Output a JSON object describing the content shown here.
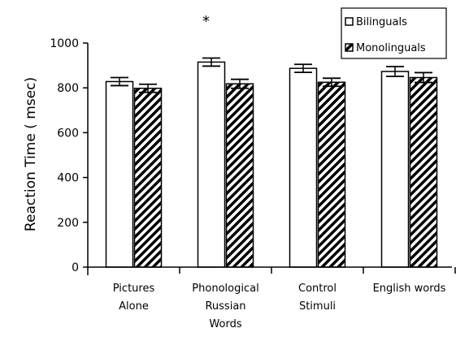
{
  "chart_data": {
    "type": "bar",
    "title": "",
    "xlabel": "",
    "ylabel": "Reaction Time ( msec)",
    "ylim": [
      0,
      1000
    ],
    "yticks": [
      0,
      200,
      400,
      600,
      800,
      1000
    ],
    "grid": false,
    "legend_position": "top-right",
    "categories": [
      "Pictures Alone",
      "Phonological Russian Words",
      "Control Stimuli",
      "English words"
    ],
    "category_label_lines": [
      [
        "Pictures",
        "Alone"
      ],
      [
        "Phonological",
        "Russian",
        "Words"
      ],
      [
        "Control",
        "Stimuli"
      ],
      [
        "English words"
      ]
    ],
    "series": [
      {
        "name": "Bilinguals",
        "fill": "white",
        "values": [
          828,
          915,
          887,
          873
        ],
        "errors": [
          18,
          18,
          18,
          22
        ]
      },
      {
        "name": "Monolinguals",
        "fill": "hatched",
        "values": [
          798,
          818,
          825,
          846
        ],
        "errors": [
          18,
          20,
          18,
          22
        ]
      }
    ],
    "annotations": [
      {
        "text": "*",
        "category": "Phonological Russian Words"
      }
    ],
    "colors": {
      "bar_stroke": "#000000",
      "bar_fill": "#ffffff",
      "hatch": "#000000"
    }
  }
}
